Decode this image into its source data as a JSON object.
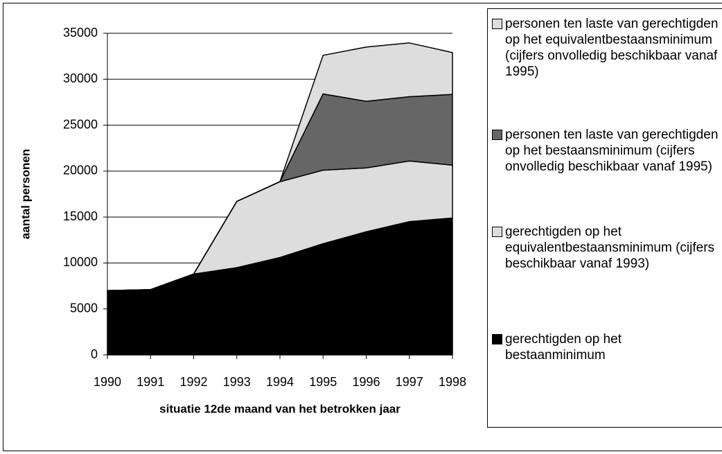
{
  "chart_data": {
    "type": "stacked_area",
    "xlabel": "situatie 12de maand van het betrokken jaar",
    "ylabel": "aantal personen",
    "categories": [
      "1990",
      "1991",
      "1992",
      "1993",
      "1994",
      "1995",
      "1996",
      "1997",
      "1998"
    ],
    "series": [
      {
        "name": "gerechtigden op het bestaanminimum",
        "color": "#000000",
        "values": [
          7000,
          7100,
          8800,
          9500,
          10600,
          12100,
          13400,
          14500,
          14900
        ]
      },
      {
        "name": "gerechtigden op het equivalentbestaansminimum (cijfers beschikbaar vanaf 1993)",
        "color": "#dddddd",
        "values": [
          0,
          0,
          0,
          7200,
          8250,
          8000,
          6950,
          6600,
          5750
        ]
      },
      {
        "name": "personen ten laste van gerechtigden op het bestaansminimum (cijfers onvolledig beschikbaar vanaf 1995)",
        "color": "#666666",
        "values": [
          0,
          0,
          0,
          0,
          0,
          8300,
          7250,
          7000,
          7700
        ]
      },
      {
        "name": "personen ten laste van gerechtigden op het equivalentbestaansminimum (cijfers onvolledig beschikbaar vanaf 1995)",
        "color": "#dddddd",
        "values": [
          0,
          0,
          0,
          0,
          0,
          4200,
          5900,
          5850,
          4550
        ]
      }
    ],
    "ylim": [
      0,
      35000
    ],
    "yticks": [
      0,
      5000,
      10000,
      15000,
      20000,
      25000,
      30000,
      35000
    ],
    "grid": true,
    "legend": "right"
  }
}
